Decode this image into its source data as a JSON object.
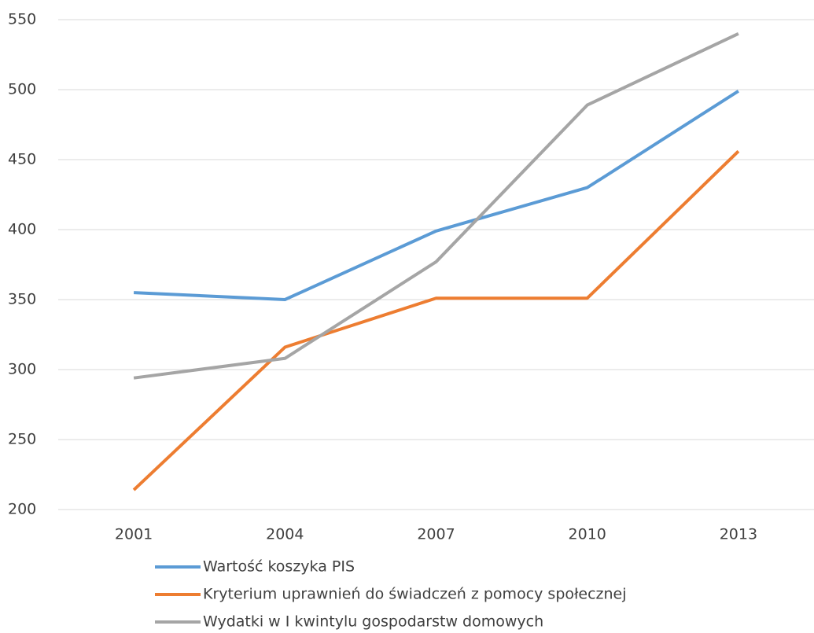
{
  "chart_data": {
    "type": "line",
    "categories": [
      "2001",
      "2004",
      "2007",
      "2010",
      "2013"
    ],
    "series": [
      {
        "name": "Wartość koszyka PIS",
        "color": "#5b9bd5",
        "values": [
          355,
          350,
          399,
          430,
          499
        ]
      },
      {
        "name": "Kryterium uprawnień do świadczeń z pomocy społecznej",
        "color": "#ed7d31",
        "values": [
          214,
          316,
          351,
          351,
          456
        ]
      },
      {
        "name": "Wydatki w I kwintylu gospodarstw domowych",
        "color": "#a5a5a5",
        "values": [
          294,
          308,
          377,
          489,
          540
        ]
      }
    ],
    "ylim": [
      200,
      550
    ],
    "yticks": [
      200,
      250,
      300,
      350,
      400,
      450,
      500,
      550
    ],
    "grid": true,
    "legend": "bottom"
  }
}
